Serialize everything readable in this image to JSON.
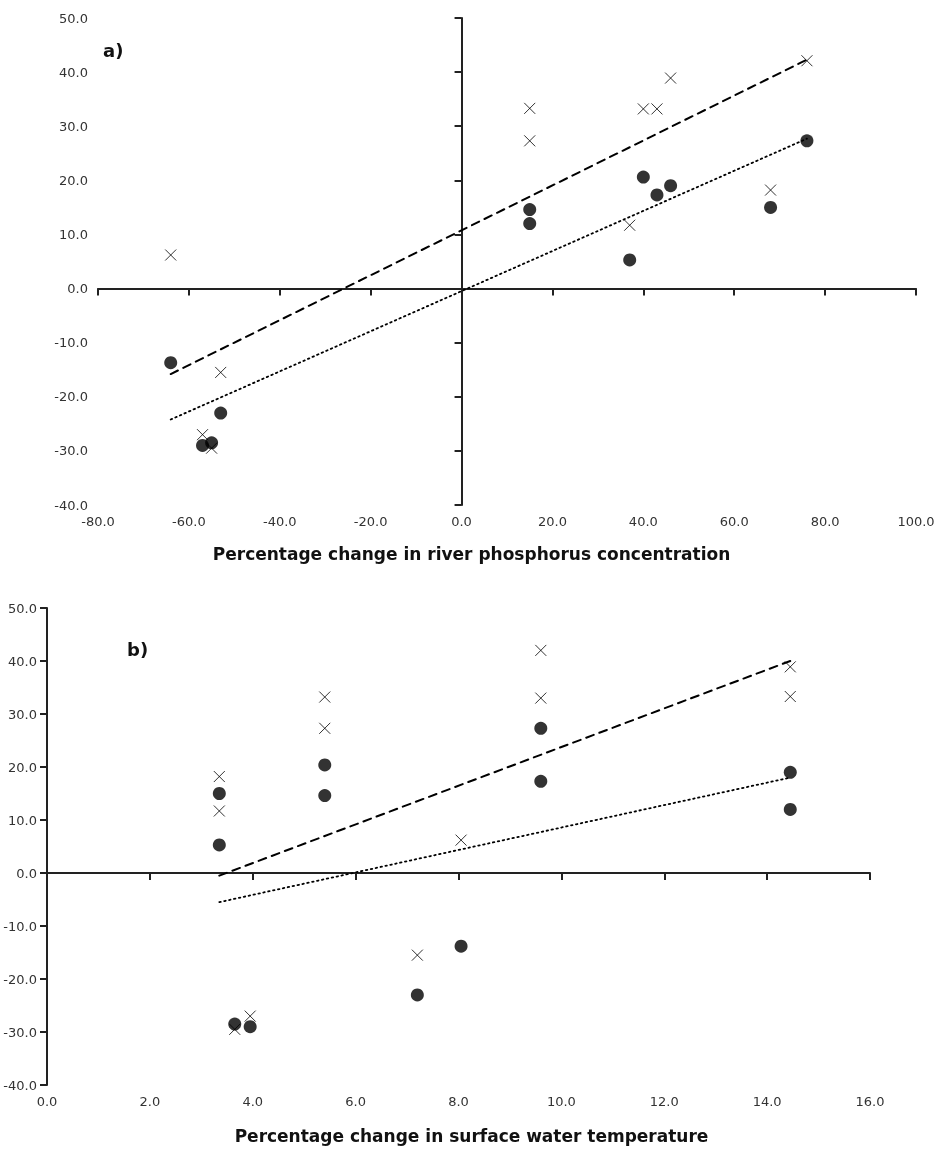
{
  "chart_data": [
    {
      "type": "scatter",
      "title": "a)",
      "xlabel": "Percentage change in river phosphorus concentration",
      "xlim": [
        -80,
        100
      ],
      "xticks": [
        {
          "value": -80,
          "label": "-80.0"
        },
        {
          "value": -60,
          "label": "-60.0"
        },
        {
          "value": -40,
          "label": "-40.0"
        },
        {
          "value": -20,
          "label": "-20.0"
        },
        {
          "value": 0,
          "label": "0.0"
        },
        {
          "value": 20,
          "label": "20.0"
        },
        {
          "value": 40,
          "label": "40.0"
        },
        {
          "value": 60,
          "label": "60.0"
        },
        {
          "value": 80,
          "label": "80.0"
        },
        {
          "value": 100,
          "label": "100.0"
        }
      ],
      "ylim": [
        -40,
        50
      ],
      "yticks": [
        {
          "value": -40,
          "label": "-40.0"
        },
        {
          "value": -30,
          "label": "-30.0"
        },
        {
          "value": -20,
          "label": "-20.0"
        },
        {
          "value": -10,
          "label": "-10.0"
        },
        {
          "value": 0,
          "label": "0.0"
        },
        {
          "value": 10,
          "label": "10.0"
        },
        {
          "value": 20,
          "label": "20.0"
        },
        {
          "value": 30,
          "label": "30.0"
        },
        {
          "value": 40,
          "label": "40.0"
        },
        {
          "value": 50,
          "label": "50.0"
        }
      ],
      "series": [
        {
          "marker": "cross",
          "color": "#000000",
          "x": [
            -64,
            -57,
            -55,
            -53,
            15,
            15,
            37,
            40,
            43,
            46,
            68,
            76
          ],
          "values": [
            6.2,
            -27,
            -29.5,
            -15.5,
            33.3,
            27.3,
            11.7,
            33.2,
            33.2,
            38.9,
            18.2,
            42.1
          ]
        },
        {
          "marker": "circle",
          "color": "#000000",
          "x": [
            -64,
            -57,
            -55,
            -53,
            15,
            15,
            37,
            40,
            43,
            46,
            68,
            76
          ],
          "values": [
            -13.7,
            -29,
            -28.5,
            -23,
            14.6,
            12,
            5.3,
            20.6,
            17.3,
            19,
            15,
            27.3
          ]
        },
        {
          "type": "line",
          "line_style": "dashed",
          "color": "#000000",
          "x": [
            -64,
            76
          ],
          "values": [
            -15.8,
            42.3
          ]
        },
        {
          "type": "line",
          "line_style": "dotted",
          "color": "#000000",
          "x": [
            -64,
            76
          ],
          "values": [
            -24.2,
            27.7
          ]
        }
      ]
    },
    {
      "type": "scatter",
      "title": "b)",
      "xlabel": "Percentage change in surface water temperature",
      "xlim": [
        0,
        16
      ],
      "xticks": [
        {
          "value": 0,
          "label": "0.0"
        },
        {
          "value": 2,
          "label": "2.0"
        },
        {
          "value": 4,
          "label": "4.0"
        },
        {
          "value": 6,
          "label": "6.0"
        },
        {
          "value": 8,
          "label": "8.0"
        },
        {
          "value": 10,
          "label": "10.0"
        },
        {
          "value": 12,
          "label": "12.0"
        },
        {
          "value": 14,
          "label": "14.0"
        },
        {
          "value": 16,
          "label": "16.0"
        }
      ],
      "ylim": [
        -40,
        50
      ],
      "yticks": [
        {
          "value": -40,
          "label": "-40.0"
        },
        {
          "value": -30,
          "label": "-30.0"
        },
        {
          "value": -20,
          "label": "-20.0"
        },
        {
          "value": -10,
          "label": "-10.0"
        },
        {
          "value": 0,
          "label": "0.0"
        },
        {
          "value": 10,
          "label": "10.0"
        },
        {
          "value": 20,
          "label": "20.0"
        },
        {
          "value": 30,
          "label": "30.0"
        },
        {
          "value": 40,
          "label": "40.0"
        },
        {
          "value": 50,
          "label": "50.0"
        }
      ],
      "series": [
        {
          "marker": "cross",
          "color": "#000000",
          "x": [
            3.35,
            3.35,
            5.4,
            5.4,
            9.6,
            9.6,
            14.45,
            14.45,
            3.65,
            3.95,
            7.2,
            8.05
          ],
          "values": [
            18.2,
            11.7,
            33.2,
            27.3,
            42,
            33,
            38.9,
            33.3,
            -29.5,
            -27,
            -15.5,
            6.2
          ]
        },
        {
          "marker": "circle",
          "color": "#000000",
          "x": [
            3.35,
            3.35,
            5.4,
            5.4,
            9.6,
            9.6,
            14.45,
            14.45,
            3.65,
            3.95,
            7.2,
            8.05
          ],
          "values": [
            15,
            5.3,
            20.4,
            14.6,
            27.3,
            17.3,
            19,
            12,
            -28.5,
            -29,
            -23,
            -13.8
          ]
        },
        {
          "type": "line",
          "line_style": "dashed",
          "color": "#000000",
          "x": [
            3.35,
            14.45
          ],
          "values": [
            -0.5,
            40
          ]
        },
        {
          "type": "line",
          "line_style": "dotted",
          "color": "#000000",
          "x": [
            3.35,
            14.45
          ],
          "values": [
            -5.5,
            18
          ]
        }
      ]
    }
  ]
}
